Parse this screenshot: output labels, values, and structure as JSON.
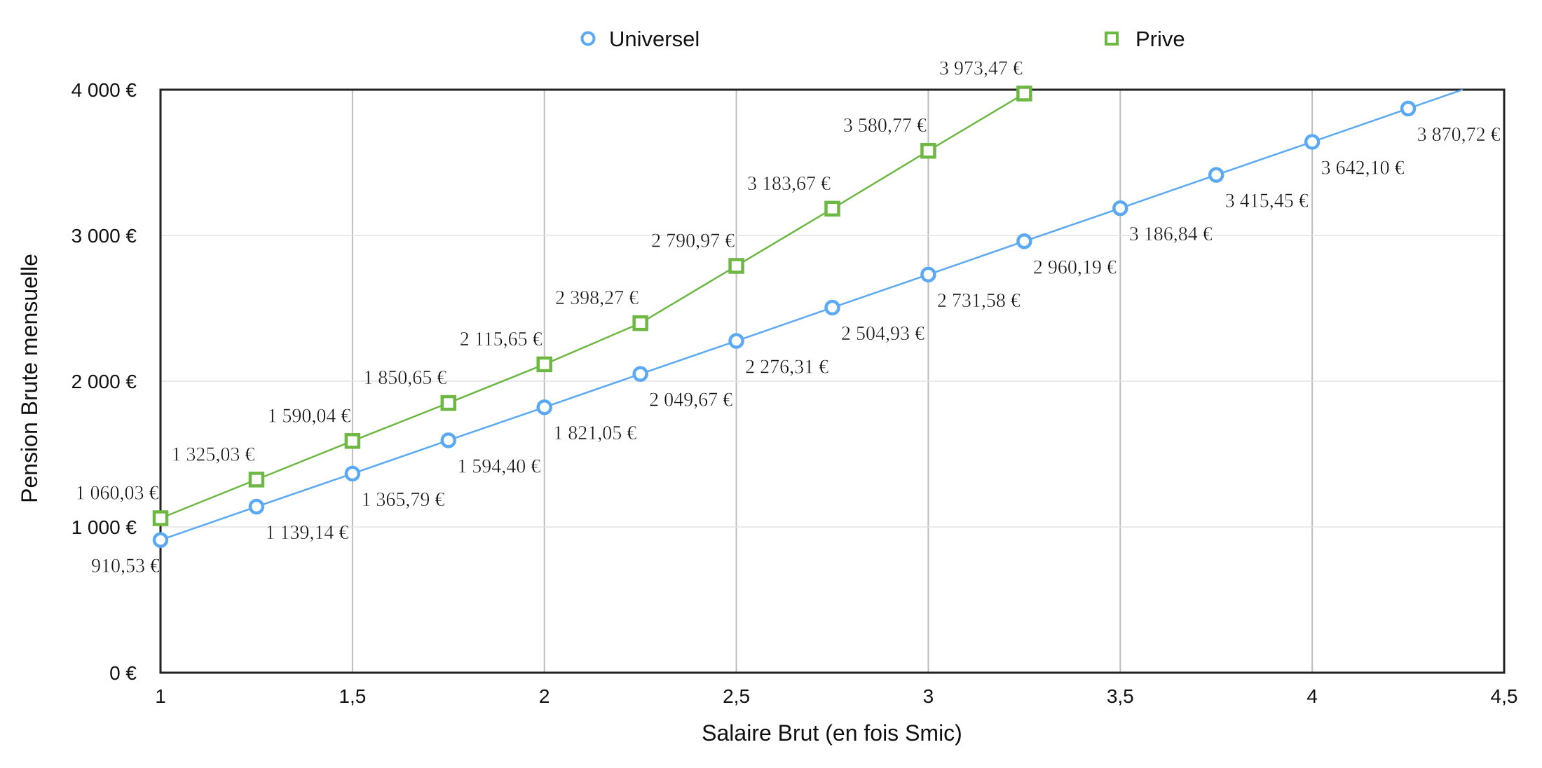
{
  "chart_data": {
    "type": "line",
    "title": "",
    "xlabel": "Salaire Brut (en fois Smic)",
    "ylabel": "Pension Brute mensuelle",
    "xlim": [
      1,
      4.5
    ],
    "ylim": [
      0,
      4000
    ],
    "xticks": [
      1,
      1.5,
      2,
      2.5,
      3,
      3.5,
      4,
      4.5
    ],
    "xtick_labels": [
      "1",
      "1,5",
      "2",
      "2,5",
      "3",
      "3,5",
      "4",
      "4,5"
    ],
    "yticks": [
      0,
      1000,
      2000,
      3000,
      4000
    ],
    "ytick_labels": [
      "0 €",
      "1 000 €",
      "2 000 €",
      "3 000 €",
      "4 000 €"
    ],
    "grid": {
      "vertical": true,
      "horizontal": true
    },
    "legend_position": "top-center",
    "series": [
      {
        "name": "Universel",
        "marker": "circle",
        "color": "#5aa9f2",
        "x": [
          1,
          1.25,
          1.5,
          1.75,
          2,
          2.25,
          2.5,
          2.75,
          3,
          3.25,
          3.5,
          3.75,
          4,
          4.25
        ],
        "values": [
          910.53,
          1139.14,
          1365.79,
          1594.4,
          1821.05,
          2049.67,
          2276.31,
          2504.93,
          2731.58,
          2960.19,
          3186.84,
          3415.45,
          3642.1,
          3870.72
        ],
        "labels": [
          "910,53 €",
          "1 139,14 €",
          "1 365,79 €",
          "1 594,40 €",
          "1 821,05 €",
          "2 049,67 €",
          "2 276,31 €",
          "2 504,93 €",
          "2 731,58 €",
          "2 960,19 €",
          "3 186,84 €",
          "3 415,45 €",
          "3 642,10 €",
          "3 870,72 €"
        ],
        "label_position": "below-right"
      },
      {
        "name": "Prive",
        "marker": "square",
        "color": "#6cb843",
        "x": [
          1,
          1.25,
          1.5,
          1.75,
          2,
          2.25,
          2.5,
          2.75,
          3,
          3.25
        ],
        "values": [
          1060.03,
          1325.03,
          1590.04,
          1850.65,
          2115.65,
          2398.27,
          2790.97,
          3183.67,
          3580.77,
          3973.47
        ],
        "labels": [
          "1 060,03 €",
          "1 325,03 €",
          "1 590,04 €",
          "1 850,65 €",
          "2 115,65 €",
          "2 398,27 €",
          "2 790,97 €",
          "3 183,67 €",
          "3 580,77 €",
          "3 973,47 €"
        ],
        "label_position": "above-left"
      }
    ]
  }
}
